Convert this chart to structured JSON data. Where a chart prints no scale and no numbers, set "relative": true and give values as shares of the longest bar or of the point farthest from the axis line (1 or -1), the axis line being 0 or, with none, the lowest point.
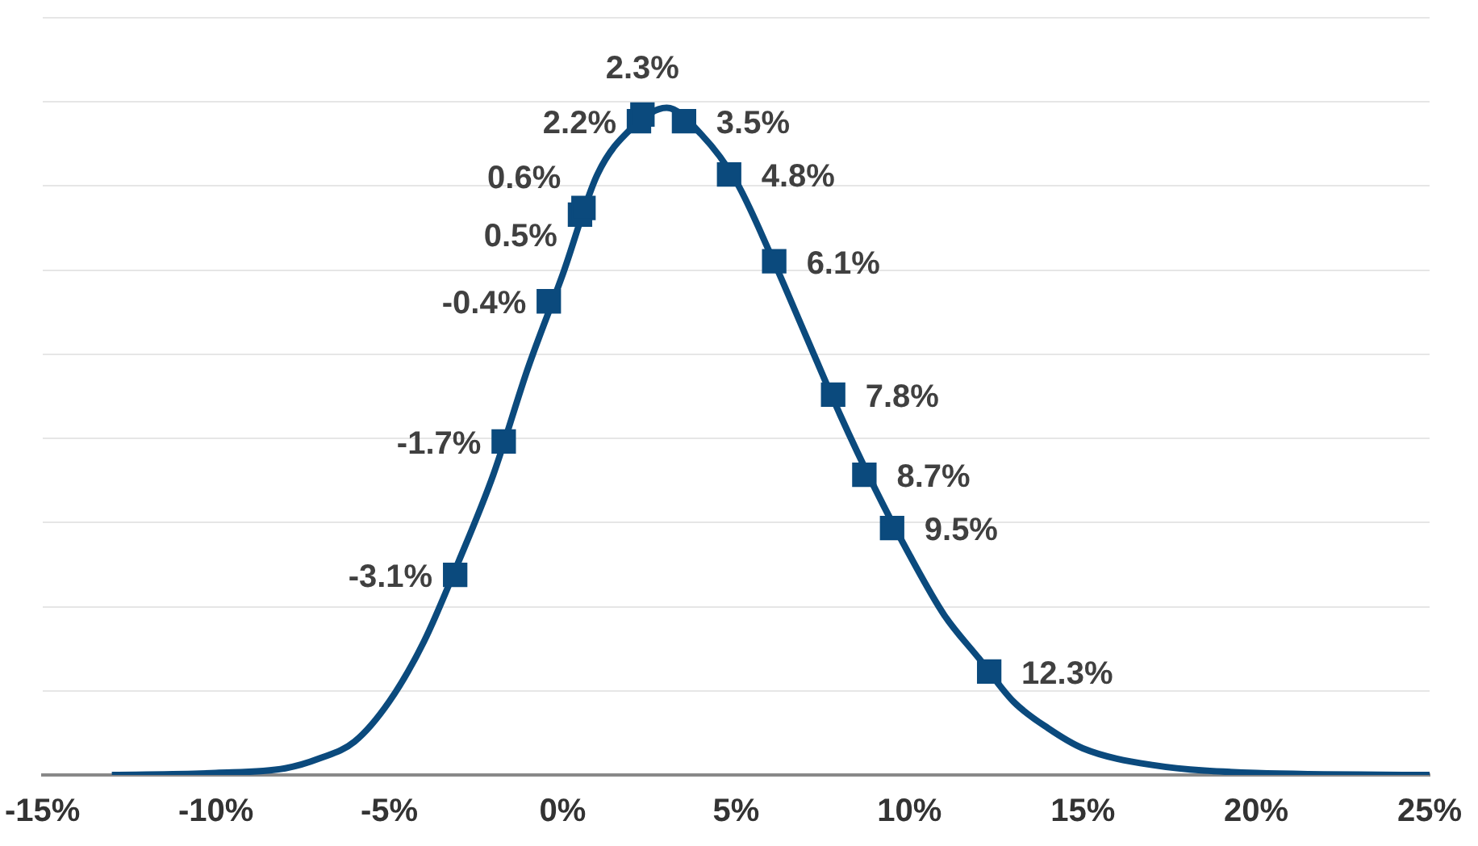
{
  "chart_data": {
    "type": "line",
    "relative": true,
    "xlim": [
      -15,
      25
    ],
    "xticks": [
      {
        "value": -15,
        "label": "-15%"
      },
      {
        "value": -10,
        "label": "-10%"
      },
      {
        "value": -5,
        "label": "-5%"
      },
      {
        "value": 0,
        "label": "0%"
      },
      {
        "value": 5,
        "label": "5%"
      },
      {
        "value": 10,
        "label": "10%"
      },
      {
        "value": 15,
        "label": "15%"
      },
      {
        "value": 20,
        "label": "20%"
      },
      {
        "value": 25,
        "label": "25%"
      }
    ],
    "tick_labels": "x",
    "grid": "y",
    "legend": false,
    "series": [
      {
        "color": "#0b4a7d",
        "marker": "none",
        "x": [
          -13,
          -10,
          -8,
          -7,
          -6,
          -5,
          -4,
          -3,
          -2,
          -1,
          0,
          1,
          2,
          3,
          4,
          5,
          6,
          7,
          8,
          9,
          10,
          11,
          12,
          13,
          14,
          15,
          17,
          20,
          25
        ],
        "values": [
          0,
          0.003,
          0.01,
          0.025,
          0.05,
          0.11,
          0.2,
          0.32,
          0.45,
          0.61,
          0.75,
          0.9,
          0.97,
          1,
          0.96,
          0.89,
          0.78,
          0.66,
          0.54,
          0.43,
          0.33,
          0.24,
          0.175,
          0.11,
          0.07,
          0.04,
          0.015,
          0.003,
          0
        ]
      },
      {
        "type": "scatter",
        "color": "#0b4a7d",
        "marker": "square",
        "x": [
          -3.1,
          -1.7,
          -0.4,
          0.5,
          0.6,
          2.2,
          2.3,
          3.5,
          4.8,
          6.1,
          7.8,
          8.7,
          9.5,
          12.3
        ],
        "values": [
          0.3,
          0.5,
          0.71,
          0.84,
          0.85,
          0.98,
          0.99,
          0.98,
          0.9,
          0.77,
          0.57,
          0.45,
          0.37,
          0.155
        ]
      }
    ],
    "annotations": [
      {
        "text": "-3.1%",
        "x": -3.1,
        "y": 0.3
      },
      {
        "text": "-1.7%",
        "x": -1.7,
        "y": 0.5
      },
      {
        "text": "-0.4%",
        "x": -0.4,
        "y": 0.71
      },
      {
        "text": "0.5%",
        "x": 0.5,
        "y": 0.84
      },
      {
        "text": "0.6%",
        "x": 0.6,
        "y": 0.85
      },
      {
        "text": "2.2%",
        "x": 2.2,
        "y": 0.98
      },
      {
        "text": "2.3%",
        "x": 2.3,
        "y": 0.99
      },
      {
        "text": "3.5%",
        "x": 3.5,
        "y": 0.98
      },
      {
        "text": "4.8%",
        "x": 4.8,
        "y": 0.9
      },
      {
        "text": "6.1%",
        "x": 6.1,
        "y": 0.77
      },
      {
        "text": "7.8%",
        "x": 7.8,
        "y": 0.57
      },
      {
        "text": "8.7%",
        "x": 8.7,
        "y": 0.45
      },
      {
        "text": "9.5%",
        "x": 9.5,
        "y": 0.37
      },
      {
        "text": "12.3%",
        "x": 12.3,
        "y": 0.155
      }
    ]
  }
}
